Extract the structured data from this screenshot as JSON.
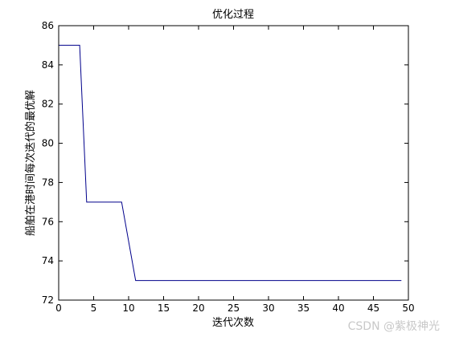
{
  "chart_data": {
    "type": "line",
    "title": "优化过程",
    "xlabel": "迭代次数",
    "ylabel": "船舶在港时间每次迭代的最优解",
    "xlim": [
      0,
      50
    ],
    "ylim": [
      72,
      86
    ],
    "xticks": [
      0,
      5,
      10,
      15,
      20,
      25,
      30,
      35,
      40,
      45,
      50
    ],
    "yticks": [
      72,
      74,
      76,
      78,
      80,
      82,
      84,
      86
    ],
    "grid": false,
    "series": [
      {
        "color": "#00008b",
        "points": [
          [
            0,
            85
          ],
          [
            3,
            85
          ],
          [
            4,
            77
          ],
          [
            9,
            77
          ],
          [
            11,
            73
          ],
          [
            49,
            73
          ]
        ]
      }
    ]
  },
  "watermark": "CSDN @紫极神光"
}
